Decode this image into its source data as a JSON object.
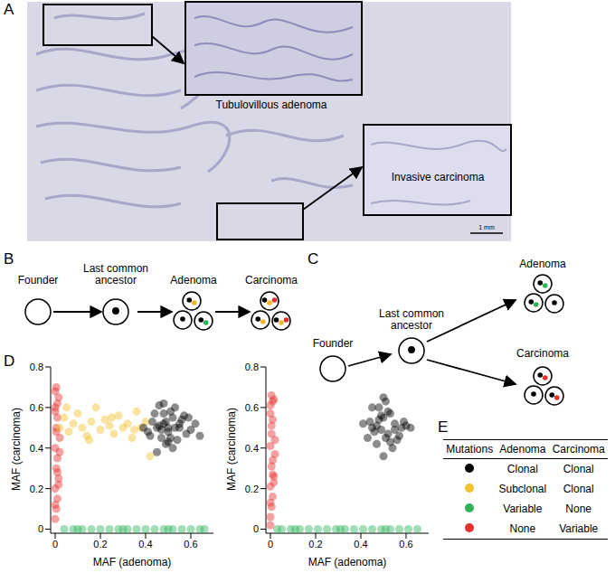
{
  "panel_labels": [
    "A",
    "B",
    "C",
    "D",
    "E"
  ],
  "image": {
    "insets": [
      "Tubulovillous adenoma",
      "Invasive carcinoma"
    ],
    "scale_bar": "1 mm"
  },
  "diagram_b": {
    "nodes": [
      {
        "label": "Founder",
        "cells": [
          []
        ]
      },
      {
        "label": "Last common ancestor",
        "cells": [
          [
            "#000000"
          ]
        ]
      },
      {
        "label": "Adenoma",
        "cells": [
          [
            "#000000",
            "#f2b72c"
          ],
          [
            "#000000"
          ],
          [
            "#000000",
            "#2fb35a"
          ]
        ]
      },
      {
        "label": "Carcinoma",
        "cells": [
          [
            "#000000",
            "#f2b72c",
            "#e5302f"
          ],
          [
            "#000000",
            "#f2b72c"
          ],
          [
            "#000000",
            "#f2b72c",
            "#e5302f"
          ]
        ]
      }
    ]
  },
  "diagram_c": {
    "nodes": [
      {
        "label": "Founder",
        "cells": [
          []
        ]
      },
      {
        "label": "Last common ancestor",
        "cells": [
          [
            "#000000"
          ]
        ]
      },
      {
        "label": "Adenoma",
        "cells": [
          [
            "#000000",
            "#2fb35a"
          ],
          [
            "#000000",
            "#2fb35a"
          ],
          [
            "#000000"
          ]
        ]
      },
      {
        "label": "Carcinoma",
        "cells": [
          [
            "#000000",
            "#e5302f"
          ],
          [
            "#000000"
          ],
          [
            "#000000",
            "#e5302f"
          ]
        ]
      }
    ]
  },
  "chart_data": [
    {
      "type": "scatter",
      "xlabel": "MAF (adenoma)",
      "ylabel": "MAF (carcinoma)",
      "xlim": [
        -0.02,
        0.7
      ],
      "ylim": [
        -0.02,
        0.8
      ],
      "xticks": [
        0,
        0.2,
        0.4,
        0.6
      ],
      "yticks": [
        0,
        0.2,
        0.4,
        0.6,
        0.8
      ],
      "series": [
        {
          "color": "#e5302f",
          "x": [
            0,
            0.005,
            0.01,
            0,
            0.015,
            0.005,
            0.01,
            0,
            0.02,
            0.005,
            0.01,
            0,
            0.015,
            0.005,
            0,
            0.01,
            0.02,
            0.005,
            0,
            0.01,
            0.015,
            0
          ],
          "y": [
            0.05,
            0.1,
            0.15,
            0.2,
            0.25,
            0.3,
            0.35,
            0.4,
            0.45,
            0.5,
            0.55,
            0.6,
            0.65,
            0.7,
            0.12,
            0.28,
            0.38,
            0.48,
            0.58,
            0.62,
            0.22,
            0.68
          ]
        },
        {
          "color": "#2fb35a",
          "x": [
            0.04,
            0.08,
            0.12,
            0.16,
            0.2,
            0.24,
            0.28,
            0.32,
            0.36,
            0.4,
            0.44,
            0.48,
            0.52,
            0.56,
            0.6,
            0.64,
            0.1,
            0.3,
            0.5,
            0.66
          ],
          "y": [
            0,
            0,
            0,
            0,
            0,
            0,
            0,
            0,
            0,
            0,
            0,
            0,
            0,
            0,
            0,
            0,
            0,
            0,
            0,
            0
          ]
        },
        {
          "color": "#f2c12e",
          "x": [
            0.02,
            0.04,
            0.06,
            0.08,
            0.1,
            0.12,
            0.14,
            0.16,
            0.18,
            0.2,
            0.22,
            0.24,
            0.26,
            0.28,
            0.3,
            0.32,
            0.34,
            0.36,
            0.38,
            0.4,
            0.05,
            0.15,
            0.25,
            0.35,
            0.42
          ],
          "y": [
            0.5,
            0.55,
            0.48,
            0.52,
            0.57,
            0.5,
            0.46,
            0.53,
            0.6,
            0.49,
            0.54,
            0.51,
            0.47,
            0.56,
            0.5,
            0.52,
            0.45,
            0.58,
            0.5,
            0.53,
            0.6,
            0.44,
            0.55,
            0.49,
            0.36
          ]
        },
        {
          "color": "#000000",
          "x": [
            0.45,
            0.48,
            0.5,
            0.52,
            0.47,
            0.55,
            0.43,
            0.58,
            0.51,
            0.49,
            0.46,
            0.53,
            0.6,
            0.42,
            0.56,
            0.5,
            0.48,
            0.54,
            0.44,
            0.62,
            0.52,
            0.47,
            0.57,
            0.49,
            0.41,
            0.51,
            0.59,
            0.46,
            0.53,
            0.5,
            0.64,
            0.45,
            0.55,
            0.48,
            0.39
          ],
          "y": [
            0.5,
            0.52,
            0.48,
            0.55,
            0.45,
            0.5,
            0.53,
            0.47,
            0.58,
            0.42,
            0.51,
            0.6,
            0.49,
            0.46,
            0.54,
            0.5,
            0.62,
            0.44,
            0.57,
            0.52,
            0.4,
            0.49,
            0.56,
            0.53,
            0.48,
            0.45,
            0.55,
            0.61,
            0.5,
            0.43,
            0.46,
            0.38,
            0.52,
            0.57,
            0.5
          ]
        }
      ]
    },
    {
      "type": "scatter",
      "xlabel": "MAF (adenoma)",
      "ylabel": "MAF (carcinoma)",
      "xlim": [
        -0.02,
        0.7
      ],
      "ylim": [
        -0.02,
        0.8
      ],
      "xticks": [
        0,
        0.2,
        0.4,
        0.6
      ],
      "yticks": [
        0,
        0.2,
        0.4,
        0.6,
        0.8
      ],
      "series": [
        {
          "color": "#e5302f",
          "x": [
            0,
            0.005,
            0.01,
            0,
            0.015,
            0.005,
            0.01,
            0,
            0.02,
            0.005,
            0.01,
            0,
            0.015,
            0.005,
            0,
            0.01,
            0.02,
            0.005,
            0,
            0.01,
            0.015,
            0
          ],
          "y": [
            0.06,
            0.11,
            0.16,
            0.21,
            0.26,
            0.31,
            0.34,
            0.41,
            0.44,
            0.51,
            0.54,
            0.61,
            0.64,
            0.66,
            0.13,
            0.27,
            0.37,
            0.47,
            0.57,
            0.63,
            0.23,
            0.02
          ]
        },
        {
          "color": "#2fb35a",
          "x": [
            0.05,
            0.09,
            0.13,
            0.17,
            0.21,
            0.25,
            0.29,
            0.33,
            0.37,
            0.41,
            0.45,
            0.49,
            0.53,
            0.57,
            0.61,
            0.65,
            0.11,
            0.31,
            0.51,
            0.03
          ],
          "y": [
            0,
            0,
            0,
            0,
            0,
            0,
            0,
            0,
            0,
            0,
            0,
            0,
            0,
            0,
            0,
            0,
            0,
            0,
            0,
            0
          ]
        },
        {
          "color": "#000000",
          "x": [
            0.45,
            0.5,
            0.52,
            0.48,
            0.55,
            0.43,
            0.58,
            0.51,
            0.47,
            0.53,
            0.49,
            0.56,
            0.44,
            0.6,
            0.5,
            0.46,
            0.54,
            0.41,
            0.52,
            0.57,
            0.48,
            0.5,
            0.62,
            0.45,
            0.53,
            0.49,
            0.55,
            0.47,
            0.51,
            0.59
          ],
          "y": [
            0.5,
            0.55,
            0.47,
            0.6,
            0.52,
            0.45,
            0.5,
            0.63,
            0.42,
            0.57,
            0.49,
            0.44,
            0.53,
            0.51,
            0.65,
            0.48,
            0.4,
            0.52,
            0.58,
            0.46,
            0.54,
            0.36,
            0.5,
            0.6,
            0.43,
            0.56,
            0.49,
            0.51,
            0.45,
            0.53
          ]
        }
      ]
    }
  ],
  "table": {
    "header": [
      "Mutations",
      "Adenoma",
      "Carcinoma"
    ],
    "rows": [
      {
        "color": "#000000",
        "cells": [
          "Clonal",
          "Clonal"
        ]
      },
      {
        "color": "#f2c12e",
        "cells": [
          "Subclonal",
          "Clonal"
        ]
      },
      {
        "color": "#2fb35a",
        "cells": [
          "Variable",
          "None"
        ]
      },
      {
        "color": "#e5302f",
        "cells": [
          "None",
          "Variable"
        ]
      }
    ]
  }
}
